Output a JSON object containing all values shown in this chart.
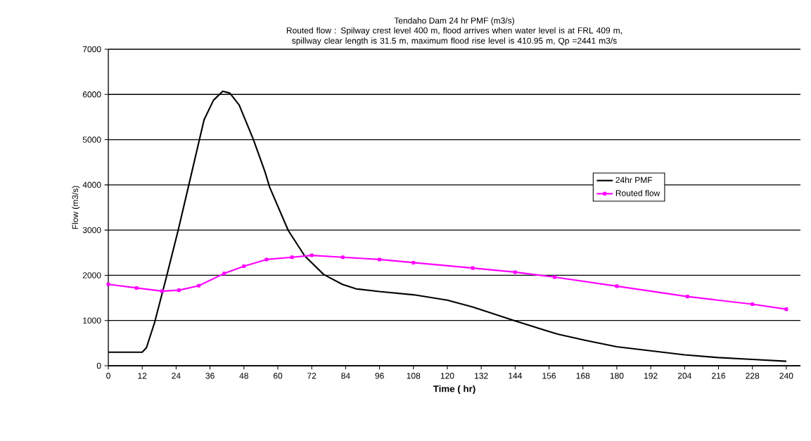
{
  "chart_data": {
    "type": "line",
    "title": "Tendaho Dam 24 hr PMF (m3/s)",
    "subtitle": "Routed flow : Spilway crest level 400 m,  flood arrives when water level is at FRL 409 m, spillway clear length is 31.5 m, maximum flood rise level is 410.95 m, Qp =2441 m3/s",
    "xlabel": "Time ( hr)",
    "ylabel": "Flow (m3/s)",
    "xlim": [
      0,
      245
    ],
    "xticks": [
      0,
      12,
      24,
      36,
      48,
      60,
      72,
      84,
      96,
      108,
      120,
      132,
      144,
      156,
      168,
      180,
      192,
      204,
      216,
      228,
      240
    ],
    "ylim": [
      0,
      7000
    ],
    "yticks": [
      0,
      1000,
      2000,
      3000,
      4000,
      5000,
      6000,
      7000
    ],
    "grid": "y",
    "legend": "right",
    "series": [
      {
        "name": "24hr PMF",
        "color": "#000000",
        "marker": "none",
        "x": [
          0,
          12,
          13.5,
          16.4,
          20.6,
          24.7,
          28.5,
          32.2,
          33.9,
          37.2,
          40.5,
          43,
          46.3,
          51.3,
          55.4,
          57.1,
          63.7,
          69.5,
          76.2,
          82.8,
          87.8,
          96,
          108,
          120,
          129,
          144,
          159,
          169,
          180,
          192,
          204,
          216,
          228,
          240
        ],
        "values": [
          300,
          300,
          400,
          960,
          1970,
          2990,
          4000,
          4990,
          5440,
          5870,
          6070,
          6030,
          5770,
          5010,
          4300,
          3950,
          2990,
          2430,
          2020,
          1800,
          1700,
          1640,
          1570,
          1450,
          1300,
          990,
          700,
          560,
          420,
          330,
          240,
          180,
          140,
          100
        ]
      },
      {
        "name": "Routed flow",
        "color": "#ff00ff",
        "marker": "square",
        "x": [
          0,
          10,
          19,
          25,
          32,
          41,
          48,
          56,
          65,
          72,
          83,
          96,
          108,
          129,
          144,
          158,
          180,
          205,
          228,
          240
        ],
        "values": [
          1800,
          1720,
          1650,
          1670,
          1770,
          2040,
          2200,
          2350,
          2400,
          2441,
          2400,
          2350,
          2280,
          2160,
          2070,
          1960,
          1760,
          1530,
          1360,
          1250
        ]
      }
    ]
  }
}
